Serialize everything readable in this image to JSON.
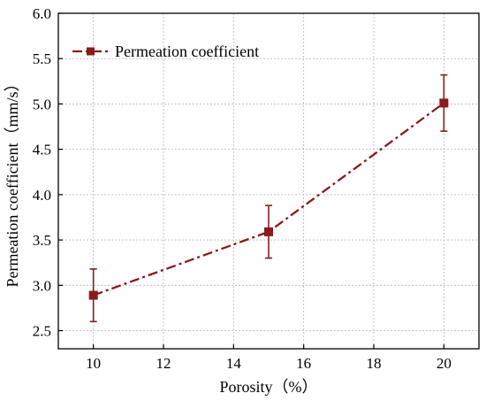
{
  "chart_data": {
    "type": "line",
    "xlabel": "Porosity（%）",
    "ylabel": "Permeation coefficient（mm/s）",
    "xlim": [
      9,
      21
    ],
    "ylim": [
      2.3,
      6.0
    ],
    "x_ticks": [
      10,
      12,
      14,
      16,
      18,
      20
    ],
    "y_ticks": [
      2.5,
      3.0,
      3.5,
      4.0,
      4.5,
      5.0,
      5.5,
      6.0
    ],
    "x_tick_labels": [
      "10",
      "12",
      "14",
      "16",
      "18",
      "20"
    ],
    "y_tick_labels": [
      "2.5",
      "3.0",
      "3.5",
      "4.0",
      "4.5",
      "5.0",
      "5.5",
      "6.0"
    ],
    "grid": true,
    "legend_position": "top-left",
    "series": [
      {
        "name": "Permeation coefficient",
        "color": "#8b1a1a",
        "line_style": "dash-dot",
        "marker": "square",
        "x": [
          10,
          15,
          20
        ],
        "y": [
          2.89,
          3.59,
          5.01
        ],
        "error": [
          0.29,
          0.29,
          0.31
        ]
      }
    ]
  }
}
